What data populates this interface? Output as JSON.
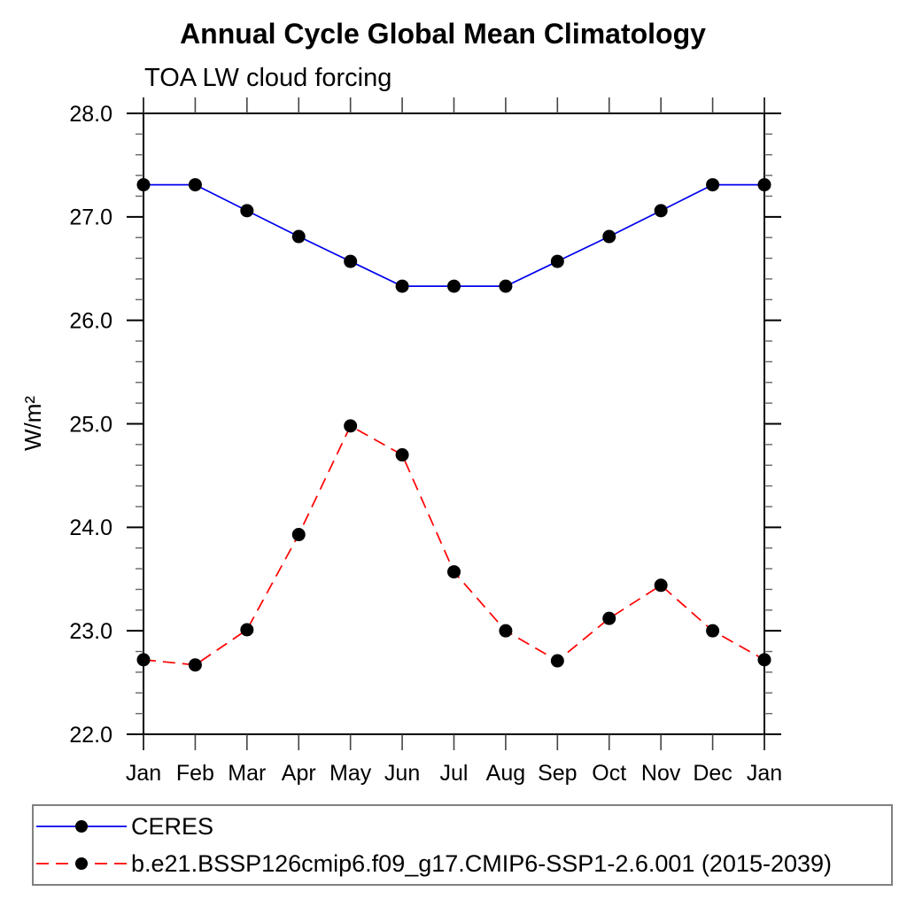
{
  "title": "Annual Cycle Global Mean Climatology",
  "subtitle": "TOA LW cloud forcing",
  "y_axis": {
    "label": "W/m²",
    "tick_labels": [
      "28.0",
      "27.0",
      "26.0",
      "25.0",
      "24.0",
      "23.0",
      "22.0"
    ]
  },
  "chart_data": {
    "type": "line",
    "categories": [
      "Jan",
      "Feb",
      "Mar",
      "Apr",
      "May",
      "Jun",
      "Jul",
      "Aug",
      "Sep",
      "Oct",
      "Nov",
      "Dec",
      "Jan"
    ],
    "series": [
      {
        "name": "CERES",
        "color": "#0000ee",
        "line_style": "solid",
        "marker": "circle",
        "marker_color": "#000000",
        "values": [
          27.31,
          27.31,
          27.06,
          26.81,
          26.57,
          26.33,
          26.33,
          26.33,
          26.57,
          26.81,
          27.06,
          27.31,
          27.31
        ]
      },
      {
        "name": "b.e21.BSSP126cmip6.f09_g17.CMIP6-SSP1-2.6.001 (2015-2039)",
        "color": "#ff0000",
        "line_style": "dashed",
        "marker": "circle",
        "marker_color": "#000000",
        "values": [
          22.72,
          22.67,
          23.01,
          23.93,
          24.98,
          24.7,
          23.57,
          23.0,
          22.71,
          23.12,
          23.44,
          23.0,
          22.72
        ]
      }
    ],
    "xlabel": "",
    "ylabel": "W/m²",
    "ylim": [
      22.0,
      28.0
    ],
    "ytick_major_interval": 1.0,
    "ytick_minor_interval": 0.2,
    "grid": false,
    "legend_position": "bottom-left-box"
  }
}
